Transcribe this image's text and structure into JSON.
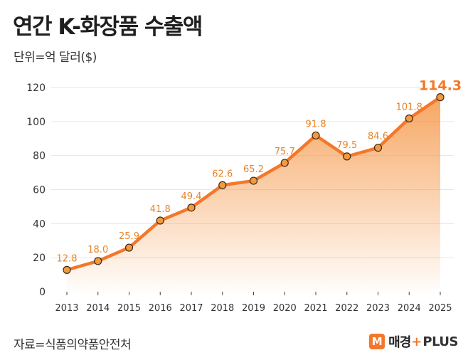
{
  "header": {
    "title": "연간 K-화장품 수출액",
    "unit": "단위=억 달러($)"
  },
  "footer": {
    "source": "자료=식품의약품안전처",
    "brand_logo": "M",
    "brand_name": "매경",
    "brand_plus_sign": "+",
    "brand_plus": "PLUS"
  },
  "colors": {
    "accent": "#f4772a",
    "marker_fill": "#f29a3e",
    "grid": "#e6e6e6",
    "label": "#e8832a"
  },
  "chart_data": {
    "type": "area",
    "categories": [
      "2013",
      "2014",
      "2015",
      "2016",
      "2017",
      "2018",
      "2019",
      "2020",
      "2021",
      "2022",
      "2023",
      "2024",
      "2025"
    ],
    "values": [
      12.8,
      18.0,
      25.9,
      41.8,
      49.4,
      62.6,
      65.2,
      75.7,
      91.8,
      79.5,
      84.6,
      101.8,
      114.3
    ],
    "data_labels": [
      "12.8",
      "18.0",
      "25.9",
      "41.8",
      "49.4",
      "62.6",
      "65.2",
      "75.7",
      "91.8",
      "79.5",
      "84.6",
      "101.8",
      "114.3"
    ],
    "yticks": [
      "0",
      "20",
      "40",
      "60",
      "80",
      "100",
      "120"
    ],
    "ylim": [
      0,
      120
    ],
    "grid": true,
    "highlight_last": true
  }
}
